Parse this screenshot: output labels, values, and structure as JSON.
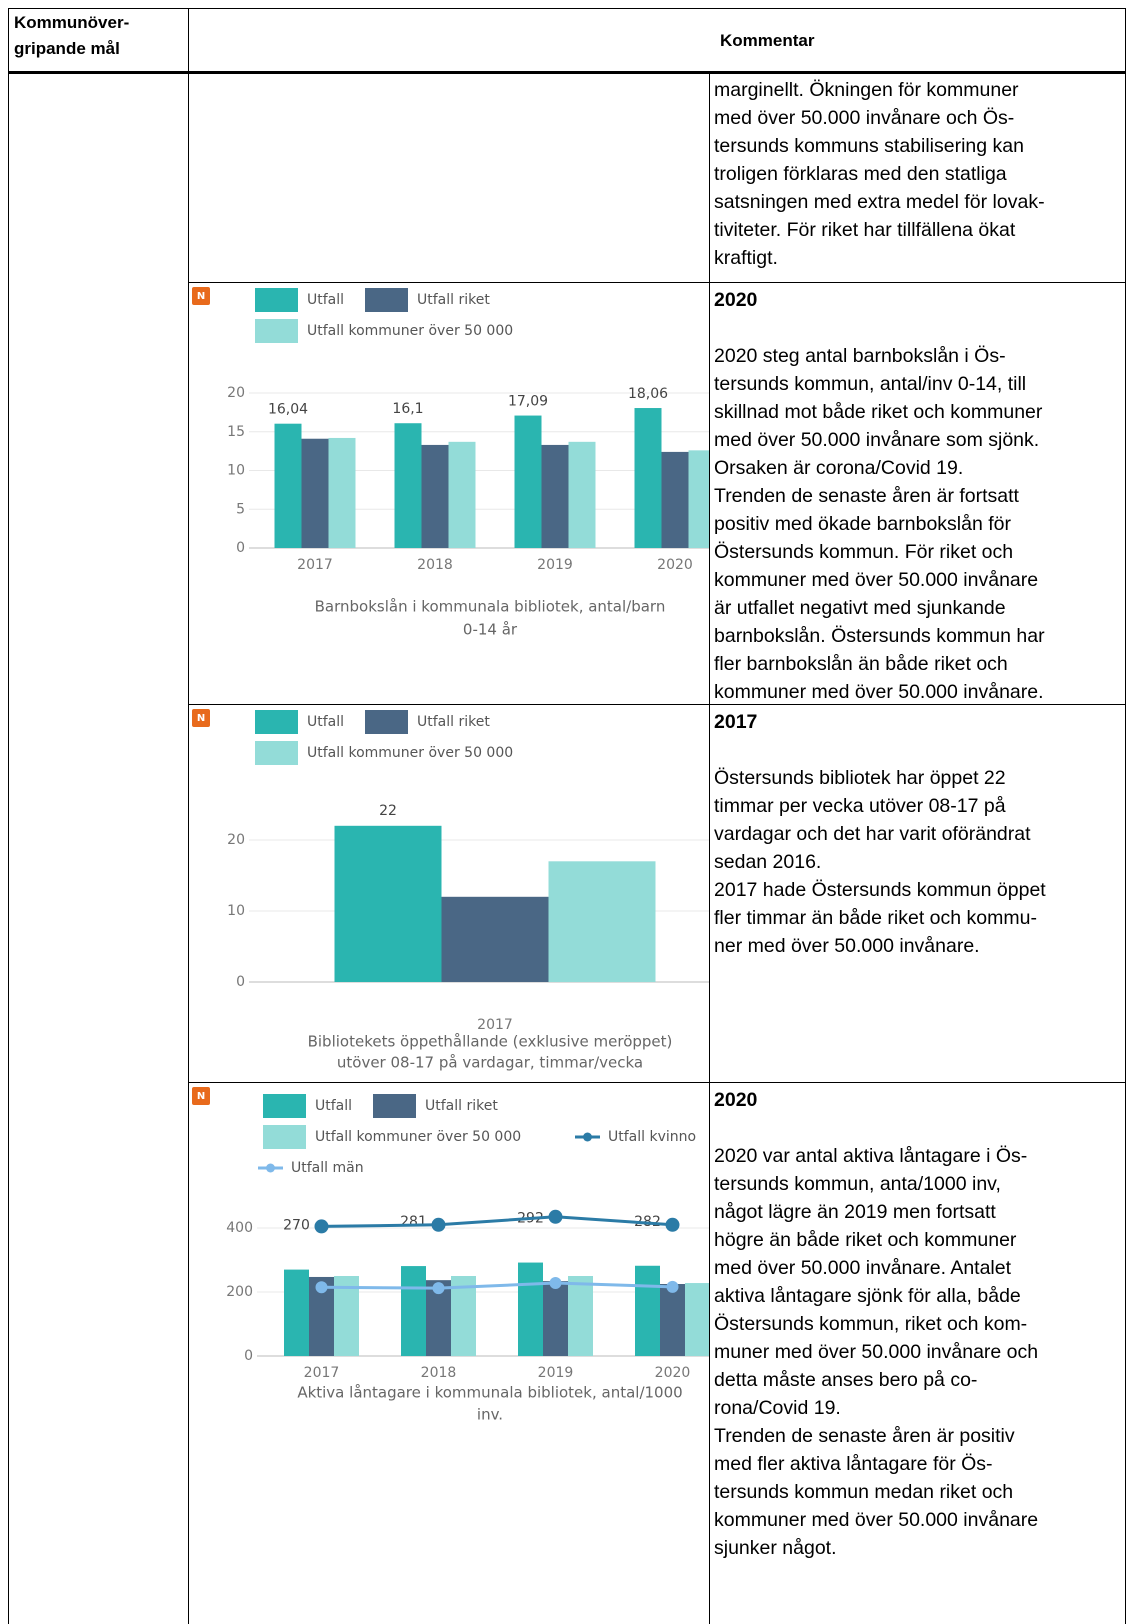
{
  "table": {
    "headers": [
      [
        "Kommunöver-",
        "gripande mål"
      ],
      "Kommentar"
    ],
    "rows": [
      {
        "comment": {
          "lines": [
            "marginellt. Ökningen för kommuner",
            "med över 50.000 invånare och Ös-",
            "tersunds kommuns stabilisering kan",
            "troligen förklaras med den statliga",
            "satsningen med extra medel för lovak-",
            "tiviteter. För riket har tillfällena ökat",
            "kraftigt."
          ]
        }
      },
      {
        "badge": "N",
        "chart": {
          "type": "bar",
          "title": [
            "Barnbokslån i kommunala bibliotek, antal/barn",
            "0-14 år"
          ],
          "categories": [
            "2017",
            "2018",
            "2019",
            "2020"
          ],
          "series": [
            {
              "name": "Utfall",
              "color": "#2ab5b0",
              "values": [
                16.04,
                16.1,
                17.09,
                18.06
              ],
              "value_labels": [
                "16,04",
                "16,1",
                "17,09",
                "18,06"
              ]
            },
            {
              "name": "Utfall riket",
              "color": "#4a6785",
              "values": [
                14.1,
                13.3,
                13.3,
                12.4
              ]
            },
            {
              "name": "Utfall kommuner över 50 000",
              "color": "#93dcd8",
              "values": [
                14.2,
                13.7,
                13.7,
                12.6
              ]
            }
          ],
          "ylim": [
            0,
            21
          ],
          "yticks": [
            0,
            5,
            10,
            15,
            20
          ],
          "grid": true
        },
        "comment": {
          "heading": "2020",
          "lines": [
            "2020 steg antal barnbokslån i Ös-",
            "tersunds kommun, antal/inv 0-14, till",
            "skillnad mot både riket och kommuner",
            "med över 50.000 invånare som sjönk.",
            "Orsaken är corona/Covid 19.",
            "Trenden de senaste åren är fortsatt",
            "positiv med ökade barnbokslån för",
            "Östersunds kommun. För riket och",
            "kommuner med över 50.000 invånare",
            "är utfallet negativt med sjunkande",
            "barnbokslån. Östersunds kommun har",
            "fler barnbokslån än både riket och",
            "kommuner med över 50.000 invånare."
          ]
        }
      },
      {
        "badge": "N",
        "chart": {
          "type": "bar",
          "title": [
            "Bibliotekets öppethållande (exklusive meröppet)",
            "utöver 08-17 på vardagar, timmar/vecka"
          ],
          "categories": [
            "2017"
          ],
          "series": [
            {
              "name": "Utfall",
              "color": "#2ab5b0",
              "values": [
                22
              ]
            },
            {
              "name": "Utfall riket",
              "color": "#4a6785",
              "values": [
                12
              ]
            },
            {
              "name": "Utfall kommuner över 50 000",
              "color": "#93dcd8",
              "values": [
                17
              ]
            }
          ],
          "ylim": [
            0,
            23
          ],
          "yticks": [
            0,
            10,
            20
          ],
          "grid": true
        },
        "comment": {
          "heading": "2017",
          "lines": [
            "Östersunds bibliotek har öppet 22",
            "timmar per vecka utöver 08-17 på",
            "vardagar och det har varit oförändrat",
            "sedan 2016.",
            "2017 hade Östersunds kommun öppet",
            "fler timmar än både riket och kommu-",
            "ner med över 50.000 invånare."
          ]
        }
      },
      {
        "badge": "N",
        "chart": {
          "type": "combo",
          "title": [
            "Aktiva låntagare i kommunala bibliotek, antal/1000",
            "inv."
          ],
          "categories": [
            "2017",
            "2018",
            "2019",
            "2020"
          ],
          "series": [
            {
              "name": "Utfall",
              "kind": "bar",
              "color": "#2ab5b0",
              "values": [
                270,
                281,
                292,
                282
              ]
            },
            {
              "name": "Utfall riket",
              "kind": "bar",
              "color": "#4a6785",
              "values": [
                247,
                237,
                234,
                225
              ]
            },
            {
              "name": "Utfall kommuner över 50 000",
              "kind": "bar",
              "color": "#93dcd8",
              "values": [
                250,
                250,
                250,
                228
              ]
            },
            {
              "name": "Utfall kvinno",
              "kind": "line",
              "color": "#2b7ba6",
              "values": [
                405,
                410,
                435,
                410
              ]
            },
            {
              "name": "Utfall män",
              "kind": "line",
              "color": "#7fb9ea",
              "values": [
                215,
                212,
                228,
                216
              ]
            }
          ],
          "ylim": [
            0,
            450
          ],
          "yticks": [
            0,
            200,
            400
          ],
          "grid": true
        },
        "comment": {
          "heading": "2020",
          "lines": [
            "2020 var antal aktiva låntagare i Ös-",
            "tersunds kommun, anta/1000 inv,",
            "något lägre än 2019 men fortsatt",
            "högre än både riket och kommuner",
            "med över 50.000 invånare. Antalet",
            "aktiva låntagare sjönk för alla, både",
            "Östersunds kommun, riket och kom-",
            "muner med över 50.000 invånare och",
            "detta måste anses bero på co-",
            "rona/Covid 19.",
            "Trenden de senaste åren är positiv",
            "med fler aktiva låntagare för Ös-",
            "tersunds kommun medan riket och",
            "kommuner med över 50.000 invånare",
            "sjunker något."
          ]
        }
      }
    ]
  }
}
